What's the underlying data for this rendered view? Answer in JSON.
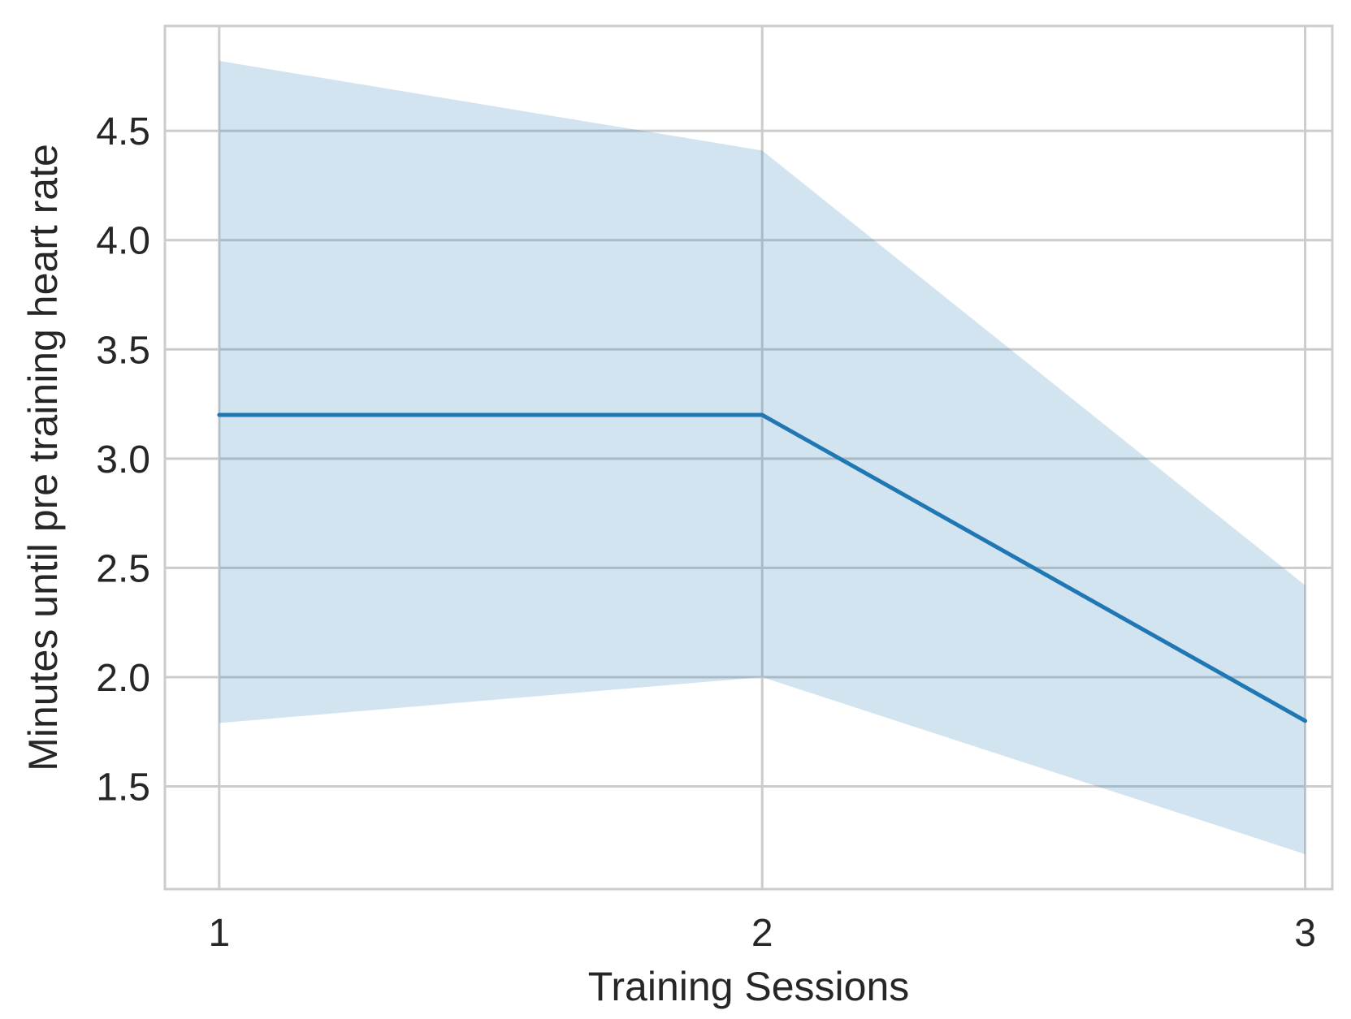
{
  "chart_data": {
    "type": "line",
    "xlabel": "Training Sessions",
    "ylabel": "Minutes until pre training heart rate",
    "x": [
      1,
      2,
      3
    ],
    "xticks": [
      "1",
      "2",
      "3"
    ],
    "xlim": [
      0.9,
      3.05
    ],
    "yticks": [
      "1.5",
      "2.0",
      "2.5",
      "3.0",
      "3.5",
      "4.0",
      "4.5"
    ],
    "ylim": [
      1.03,
      4.98
    ],
    "grid": true,
    "series": [
      {
        "values": [
          3.2,
          3.2,
          1.8
        ],
        "ci_lower": [
          1.79,
          2.0,
          1.19
        ],
        "ci_upper": [
          4.82,
          4.41,
          2.42
        ],
        "color": "#1f77b4",
        "band_color": "#1f77b4"
      }
    ]
  }
}
